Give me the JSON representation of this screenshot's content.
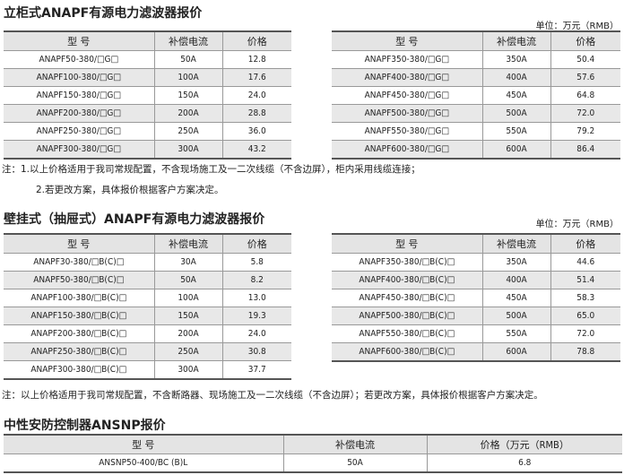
{
  "section1": {
    "title": "立柜式ANAPF有源电力滤波器报价",
    "unit": "单位：万元（RMB）",
    "headers": [
      "型 号",
      "补偿电流",
      "价格"
    ],
    "left_rows": [
      [
        "ANAPF50-380/□G□",
        "50A",
        "12.8"
      ],
      [
        "ANAPF100-380/□G□",
        "100A",
        "17.6"
      ],
      [
        "ANAPF150-380/□G□",
        "150A",
        "24.0"
      ],
      [
        "ANAPF200-380/□G□",
        "200A",
        "28.8"
      ],
      [
        "ANAPF250-380/□G□",
        "250A",
        "36.0"
      ],
      [
        "ANAPF300-380/□G□",
        "300A",
        "43.2"
      ]
    ],
    "right_rows": [
      [
        "ANAPF350-380/□G□",
        "350A",
        "50.4"
      ],
      [
        "ANAPF400-380/□G□",
        "400A",
        "57.6"
      ],
      [
        "ANAPF450-380/□G□",
        "450A",
        "64.8"
      ],
      [
        "ANAPF500-380/□G□",
        "500A",
        "72.0"
      ],
      [
        "ANAPF550-380/□G□",
        "550A",
        "79.2"
      ],
      [
        "ANAPF600-380/□G□",
        "600A",
        "86.4"
      ]
    ],
    "note1": "注：1.以上价格适用于我司常规配置，不含现场施工及一二次线缆（不含边屏），柜内采用线缆连接；",
    "note2": "2.若更改方案，具体报价根据客户方案决定。"
  },
  "section2": {
    "title": "壁挂式（抽屉式）ANAPF有源电力滤波器报价",
    "unit": "单位：万元（RMB）",
    "headers": [
      "型 号",
      "补偿电流",
      "价格"
    ],
    "left_rows": [
      [
        "ANAPF30-380/□B(C)□",
        "30A",
        "5.8"
      ],
      [
        "ANAPF50-380/□B(C)□",
        "50A",
        "8.2"
      ],
      [
        "ANAPF100-380/□B(C)□",
        "100A",
        "13.0"
      ],
      [
        "ANAPF150-380/□B(C)□",
        "150A",
        "19.3"
      ],
      [
        "ANAPF200-380/□B(C)□",
        "200A",
        "24.0"
      ],
      [
        "ANAPF250-380/□B(C)□",
        "250A",
        "30.8"
      ],
      [
        "ANAPF300-380/□B(C)□",
        "300A",
        "37.7"
      ]
    ],
    "right_rows": [
      [
        "ANAPF350-380/□B(C)□",
        "350A",
        "44.6"
      ],
      [
        "ANAPF400-380/□B(C)□",
        "400A",
        "51.4"
      ],
      [
        "ANAPF450-380/□B(C)□",
        "450A",
        "58.3"
      ],
      [
        "ANAPF500-380/□B(C)□",
        "500A",
        "65.0"
      ],
      [
        "ANAPF550-380/□B(C)□",
        "550A",
        "72.0"
      ],
      [
        "ANAPF600-380/□B(C)□",
        "600A",
        "78.8"
      ]
    ],
    "note": "注：以上价格适用于我司常规配置，不含断路器、现场施工及一二次线缆（不含边屏）；若更改方案，具体报价根据客户方案决定。"
  },
  "section3": {
    "title": "中性安防控制器ANSNP报价",
    "headers": [
      "型 号",
      "补偿电流",
      "价格（万元（RMB）"
    ],
    "rows": [
      [
        "ANSNP50-400/BC (B)L",
        "50A",
        "6.8"
      ]
    ]
  }
}
